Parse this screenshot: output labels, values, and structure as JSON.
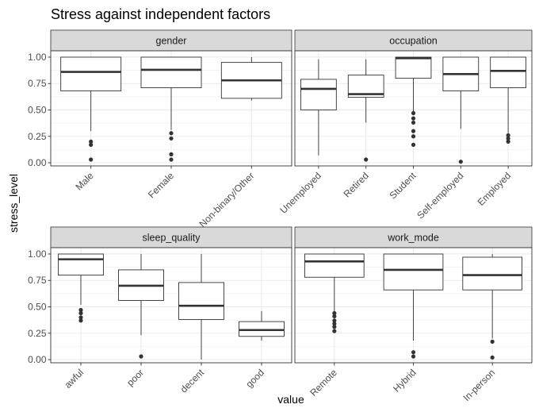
{
  "chart_data": {
    "type": "boxplot",
    "title": "Stress against independent factors",
    "xlabel": "value",
    "ylabel": "stress_level",
    "ylim": [
      -0.03,
      1.06
    ],
    "yticks": [
      "0.00",
      "0.25",
      "0.50",
      "0.75",
      "1.00"
    ],
    "ytick_values": [
      0,
      0.25,
      0.5,
      0.75,
      1.0
    ],
    "grid": true,
    "colors": {
      "strip_fill": "#d9d9d9",
      "panel_border": "#333333",
      "grid": "#ebebeb",
      "box": "#333333",
      "outlier": "#333333"
    },
    "facets": [
      {
        "name": "gender",
        "categories": [
          "Male",
          "Female",
          "Non-binary/Other"
        ],
        "boxes": [
          {
            "q1": 0.68,
            "median": 0.86,
            "q3": 1.0,
            "whisker_low": 0.3,
            "whisker_high": 1.0,
            "outliers": [
              0.03,
              0.17,
              0.2
            ]
          },
          {
            "q1": 0.71,
            "median": 0.88,
            "q3": 1.0,
            "whisker_low": 0.31,
            "whisker_high": 1.0,
            "outliers": [
              0.03,
              0.08,
              0.23,
              0.28
            ]
          },
          {
            "q1": 0.61,
            "median": 0.78,
            "q3": 0.95,
            "whisker_low": 0.59,
            "whisker_high": 1.0,
            "outliers": []
          }
        ]
      },
      {
        "name": "occupation",
        "categories": [
          "Unemployed",
          "Retired",
          "Student",
          "Self-employed",
          "Employed"
        ],
        "boxes": [
          {
            "q1": 0.5,
            "median": 0.7,
            "q3": 0.79,
            "whisker_low": 0.07,
            "whisker_high": 0.98,
            "outliers": []
          },
          {
            "q1": 0.62,
            "median": 0.65,
            "q3": 0.83,
            "whisker_low": 0.38,
            "whisker_high": 0.98,
            "outliers": [
              0.03
            ]
          },
          {
            "q1": 0.8,
            "median": 0.99,
            "q3": 1.0,
            "whisker_low": 0.48,
            "whisker_high": 1.0,
            "outliers": [
              0.17,
              0.25,
              0.3,
              0.38,
              0.42,
              0.47
            ]
          },
          {
            "q1": 0.68,
            "median": 0.84,
            "q3": 1.0,
            "whisker_low": 0.32,
            "whisker_high": 1.0,
            "outliers": [
              0.01
            ]
          },
          {
            "q1": 0.71,
            "median": 0.87,
            "q3": 1.0,
            "whisker_low": 0.28,
            "whisker_high": 1.0,
            "outliers": [
              0.2,
              0.23,
              0.26
            ]
          }
        ]
      },
      {
        "name": "sleep_quality",
        "categories": [
          "awful",
          "poor",
          "decent",
          "good"
        ],
        "boxes": [
          {
            "q1": 0.8,
            "median": 0.95,
            "q3": 1.0,
            "whisker_low": 0.52,
            "whisker_high": 1.0,
            "outliers": [
              0.37,
              0.4,
              0.44,
              0.47
            ]
          },
          {
            "q1": 0.56,
            "median": 0.7,
            "q3": 0.85,
            "whisker_low": 0.23,
            "whisker_high": 1.0,
            "outliers": [
              0.03
            ]
          },
          {
            "q1": 0.38,
            "median": 0.51,
            "q3": 0.73,
            "whisker_low": 0.0,
            "whisker_high": 1.0,
            "outliers": []
          },
          {
            "q1": 0.22,
            "median": 0.28,
            "q3": 0.36,
            "whisker_low": 0.18,
            "whisker_high": 0.46,
            "outliers": []
          }
        ]
      },
      {
        "name": "work_mode",
        "categories": [
          "Remote",
          "Hybrid",
          "In-person"
        ],
        "boxes": [
          {
            "q1": 0.78,
            "median": 0.93,
            "q3": 1.0,
            "whisker_low": 0.46,
            "whisker_high": 1.0,
            "outliers": [
              0.27,
              0.31,
              0.34,
              0.37,
              0.41,
              0.44
            ]
          },
          {
            "q1": 0.66,
            "median": 0.85,
            "q3": 1.0,
            "whisker_low": 0.18,
            "whisker_high": 1.0,
            "outliers": [
              0.03,
              0.07
            ]
          },
          {
            "q1": 0.66,
            "median": 0.8,
            "q3": 0.97,
            "whisker_low": 0.2,
            "whisker_high": 1.0,
            "outliers": [
              0.02,
              0.17
            ]
          }
        ]
      }
    ]
  }
}
